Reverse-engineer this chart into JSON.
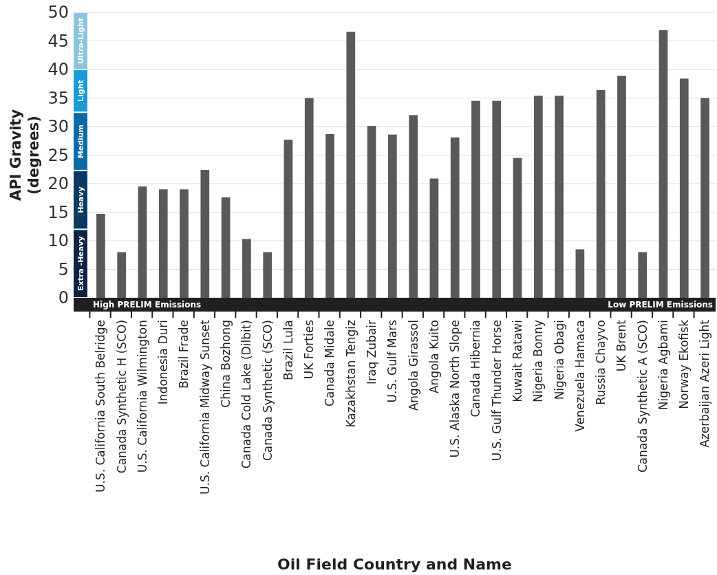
{
  "chart_data": {
    "type": "bar",
    "xlabel": "Oil Field Country and Name",
    "ylabel": "API Gravity\n(degrees)",
    "categories": [
      "U.S. California South Belridge",
      "Canada Synthetic H (SCO)",
      "U.S. California Wilmington",
      "Indonesia Duri",
      "Brazil Frade",
      "U.S. California Midway Sunset",
      "China Bozhong",
      "Canada Cold Lake (Dilbit)",
      "Canada Synthetic (SCO)",
      "Brazil Lula",
      "UK Forties",
      "Canada Midale",
      "Kazakhstan Tengiz",
      "Iraq Zubair",
      "U.S. Gulf Mars",
      "Angola Girassol",
      "Angola Kuito",
      "U.S. Alaska North Slope",
      "Canada Hibernia",
      "U.S. Gulf Thunder Horse",
      "Kuwait Ratawi",
      "Nigeria Bonny",
      "Nigeria Obagi",
      "Venezuela Hamaca",
      "Russia Chayvo",
      "UK Brent",
      "Canada Synthetic A (SCO)",
      "Nigeria Agbami",
      "Norway Ekofisk",
      "Azerbaijan Azeri Light"
    ],
    "values": [
      14.7,
      8.0,
      19.5,
      19.0,
      19.0,
      22.4,
      17.6,
      10.3,
      8.0,
      27.7,
      35.0,
      28.7,
      46.6,
      30.1,
      28.6,
      32.0,
      20.9,
      28.1,
      34.5,
      34.5,
      24.5,
      35.4,
      35.4,
      8.5,
      36.4,
      38.9,
      8.0,
      46.9,
      38.4,
      35.0
    ],
    "color": "#58595b",
    "ylim": [
      0,
      50
    ],
    "yticks": [
      0,
      5,
      10,
      15,
      20,
      25,
      30,
      35,
      40,
      45,
      50
    ],
    "grid": "y",
    "annotations": [
      "High PRELIM Emissions",
      "Low PRELIM Emissions",
      "Extra -Heavy",
      "Heavy",
      "Medium",
      "Light",
      "Ultra-Light"
    ]
  }
}
